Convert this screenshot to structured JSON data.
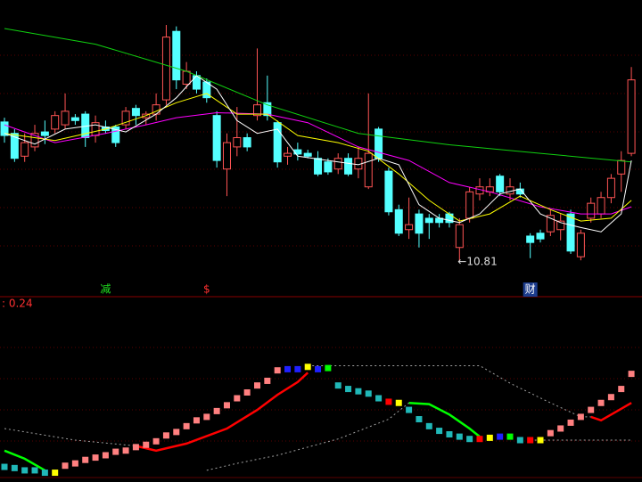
{
  "chart_data": [
    {
      "type": "candlestick",
      "up_color": "#ff5454",
      "down_color": "#54ffff",
      "ylim": [
        10.31,
        14.47
      ],
      "open": [
        12.76,
        12.6,
        12.28,
        12.41,
        12.62,
        12.66,
        12.72,
        12.82,
        12.87,
        12.57,
        12.69,
        12.69,
        12.72,
        12.95,
        12.82,
        12.87,
        13.07,
        14.03,
        13.29,
        13.41,
        13.32,
        12.85,
        12.1,
        12.41,
        12.54,
        12.85,
        13.03,
        12.75,
        12.28,
        12.37,
        12.32,
        12.25,
        12.2,
        12.1,
        12.25,
        12.1,
        11.85,
        12.66,
        12.07,
        11.53,
        11.25,
        11.47,
        11.41,
        11.41,
        11.47,
        11.0,
        11.41,
        11.75,
        11.78,
        12.0,
        11.75,
        11.82,
        11.16,
        11.2,
        11.22,
        11.25,
        11.47,
        10.87,
        11.41,
        11.47,
        11.7,
        12.03,
        12.32
      ],
      "close": [
        12.57,
        12.25,
        12.47,
        12.6,
        12.57,
        12.85,
        12.91,
        12.78,
        12.54,
        12.75,
        12.64,
        12.47,
        12.91,
        12.85,
        12.87,
        13.0,
        13.95,
        13.35,
        13.47,
        13.22,
        13.1,
        12.22,
        12.47,
        12.54,
        12.41,
        13.0,
        12.85,
        12.2,
        12.32,
        12.31,
        12.28,
        12.03,
        12.06,
        12.25,
        12.03,
        12.25,
        12.32,
        12.25,
        11.5,
        11.2,
        11.32,
        11.2,
        11.35,
        11.35,
        11.35,
        11.32,
        11.78,
        11.85,
        11.85,
        11.78,
        11.85,
        11.75,
        11.07,
        11.12,
        11.45,
        11.37,
        10.95,
        11.2,
        11.62,
        11.7,
        11.97,
        12.22,
        13.35
      ],
      "high": [
        12.82,
        12.66,
        12.6,
        12.72,
        12.78,
        12.91,
        13.16,
        12.87,
        12.91,
        12.85,
        12.78,
        12.72,
        12.97,
        13.0,
        12.91,
        13.16,
        14.12,
        14.1,
        13.6,
        13.47,
        13.37,
        12.91,
        12.6,
        12.97,
        12.6,
        13.79,
        13.41,
        12.78,
        12.41,
        12.47,
        12.37,
        12.35,
        12.25,
        12.32,
        12.32,
        12.41,
        13.16,
        12.69,
        12.12,
        11.6,
        11.7,
        11.53,
        11.47,
        11.47,
        11.5,
        11.41,
        11.85,
        11.97,
        11.97,
        12.03,
        11.97,
        11.91,
        11.2,
        11.25,
        11.53,
        11.47,
        11.53,
        11.25,
        11.7,
        11.78,
        12.03,
        12.35,
        13.53
      ],
      "low": [
        12.47,
        12.2,
        12.2,
        12.35,
        12.45,
        12.6,
        12.66,
        12.72,
        12.41,
        12.47,
        12.6,
        12.41,
        12.66,
        12.72,
        12.72,
        12.78,
        13.0,
        13.22,
        13.22,
        13.16,
        13.03,
        12.12,
        11.72,
        12.28,
        12.35,
        12.78,
        12.78,
        12.12,
        12.16,
        12.22,
        12.25,
        12.0,
        12.02,
        12.03,
        12.0,
        11.97,
        11.82,
        12.2,
        11.45,
        11.16,
        11.12,
        11.0,
        11.12,
        11.28,
        11.28,
        10.81,
        11.35,
        11.66,
        11.72,
        11.72,
        11.66,
        11.7,
        10.85,
        11.07,
        11.16,
        11.1,
        10.91,
        10.82,
        11.35,
        11.41,
        11.62,
        11.78,
        12.28
      ],
      "lines": [
        {
          "color": "#10d010",
          "x": [
            0,
            9,
            18,
            26,
            35,
            44,
            53,
            62
          ],
          "values": [
            14.07,
            13.85,
            13.47,
            13.0,
            12.6,
            12.44,
            12.32,
            12.2
          ]
        },
        {
          "color": "#ff00ff",
          "x": [
            0,
            5,
            10,
            14,
            17,
            21,
            26,
            30,
            35,
            40,
            44,
            48,
            53,
            57,
            60,
            62
          ],
          "values": [
            12.72,
            12.47,
            12.6,
            12.72,
            12.82,
            12.89,
            12.87,
            12.75,
            12.41,
            12.22,
            11.91,
            11.78,
            11.57,
            11.47,
            11.47,
            11.57
          ]
        },
        {
          "color": "#ffff00",
          "x": [
            0,
            5,
            10,
            14,
            17,
            20,
            23,
            26,
            29,
            33,
            36,
            39,
            42,
            45,
            48,
            51,
            54,
            57,
            60,
            62
          ],
          "values": [
            12.6,
            12.5,
            12.66,
            12.85,
            13.03,
            13.16,
            12.87,
            12.87,
            12.57,
            12.47,
            12.35,
            12.03,
            11.66,
            11.37,
            11.47,
            11.72,
            11.53,
            11.37,
            11.41,
            11.66
          ]
        },
        {
          "color": "#ffffff",
          "x": [
            0,
            3,
            6,
            9,
            12,
            15,
            17,
            19,
            21,
            23,
            25,
            27,
            29,
            32,
            35,
            37,
            39,
            41,
            43,
            45,
            47,
            49,
            51,
            53,
            55,
            57,
            59,
            61,
            62
          ],
          "values": [
            12.6,
            12.45,
            12.66,
            12.72,
            12.62,
            12.87,
            13.1,
            13.41,
            13.22,
            12.78,
            12.6,
            12.66,
            12.28,
            12.22,
            12.16,
            12.25,
            12.16,
            11.6,
            11.41,
            11.35,
            11.47,
            11.75,
            11.82,
            11.47,
            11.35,
            11.28,
            11.22,
            11.47,
            12.22
          ]
        }
      ],
      "annotation": {
        "text": "←10.81",
        "x": 45,
        "y": 10.81
      },
      "markers": [
        {
          "x": 10,
          "text": "减",
          "color": "#20e020"
        },
        {
          "x": 20,
          "text": "$",
          "color": "#ff3030"
        },
        {
          "x": 52,
          "text": "财",
          "color": "#ffffff"
        }
      ]
    },
    {
      "type": "indicator",
      "label": ": 0.24",
      "label_color": "#ff3030",
      "ylim": [
        -0.08,
        1.46
      ],
      "values": [
        0.05,
        0.04,
        0.02,
        0.02,
        0,
        0,
        0.06,
        0.08,
        0.11,
        0.13,
        0.15,
        0.18,
        0.19,
        0.22,
        0.24,
        0.27,
        0.32,
        0.35,
        0.4,
        0.45,
        0.48,
        0.53,
        0.58,
        0.64,
        0.69,
        0.75,
        0.79,
        0.88,
        0.89,
        0.89,
        0.91,
        0.89,
        0.9,
        0.75,
        0.72,
        0.7,
        0.68,
        0.64,
        0.61,
        0.6,
        0.54,
        0.46,
        0.4,
        0.36,
        0.33,
        0.31,
        0.29,
        0.29,
        0.3,
        0.31,
        0.31,
        0.28,
        0.28,
        0.28,
        0.34,
        0.38,
        0.43,
        0.48,
        0.54,
        0.6,
        0.65,
        0.72,
        0.85
      ],
      "colors": [
        "#20b8b8",
        "#20b8b8",
        "#20b8b8",
        "#20b8b8",
        "#20b8b8",
        "#ffff00",
        "#ff8080",
        "#ff8080",
        "#ff8080",
        "#ff8080",
        "#ff8080",
        "#ff8080",
        "#ff8080",
        "#ff8080",
        "#ff8080",
        "#ff8080",
        "#ff8080",
        "#ff8080",
        "#ff8080",
        "#ff8080",
        "#ff8080",
        "#ff8080",
        "#ff8080",
        "#ff8080",
        "#ff8080",
        "#ff8080",
        "#ff8080",
        "#ff8080",
        "#2020ff",
        "#2020ff",
        "#ffff00",
        "#2020ff",
        "#00ff00",
        "#20b8b8",
        "#20b8b8",
        "#20b8b8",
        "#20b8b8",
        "#20b8b8",
        "#ff0000",
        "#ffff00",
        "#20b8b8",
        "#20b8b8",
        "#20b8b8",
        "#20b8b8",
        "#20b8b8",
        "#20b8b8",
        "#20b8b8",
        "#ff0000",
        "#ffff00",
        "#2020ff",
        "#00ff00",
        "#20b8b8",
        "#ff0000",
        "#ffff00",
        "#ff8080",
        "#ff8080",
        "#ff8080",
        "#ff8080",
        "#ff8080",
        "#ff8080",
        "#ff8080",
        "#ff8080",
        "#ff8080"
      ],
      "lines": [
        {
          "color": "#ff0000",
          "width": 2.5,
          "dash": false,
          "x": [
            13,
            15,
            18,
            22,
            25,
            27,
            29,
            30,
            null,
            58,
            59,
            60,
            61,
            62
          ],
          "values": [
            0.23,
            0.19,
            0.25,
            0.38,
            0.54,
            0.67,
            0.78,
            0.86,
            null,
            0.48,
            0.45,
            0.5,
            0.55,
            0.6
          ]
        },
        {
          "color": "#00ff00",
          "width": 2.5,
          "dash": false,
          "x": [
            0,
            2,
            4,
            null,
            40,
            42,
            44,
            46,
            47
          ],
          "values": [
            0.19,
            0.12,
            0.02,
            null,
            0.6,
            0.59,
            0.5,
            0.38,
            0.31
          ]
        },
        {
          "color": "#a0a0a0",
          "width": 1,
          "dash": true,
          "x": [
            0,
            7,
            13,
            null,
            30,
            47,
            50,
            54,
            57,
            58
          ],
          "values": [
            0.38,
            0.28,
            0.23,
            null,
            0.92,
            0.92,
            0.77,
            0.6,
            0.48,
            0.48
          ]
        },
        {
          "color": "#a0a0a0",
          "width": 1,
          "dash": true,
          "x": [
            20,
            23,
            27,
            33,
            38,
            40,
            null,
            52,
            62
          ],
          "values": [
            0.02,
            0.08,
            0.15,
            0.29,
            0.46,
            0.6,
            null,
            0.28,
            0.28
          ]
        }
      ]
    }
  ]
}
